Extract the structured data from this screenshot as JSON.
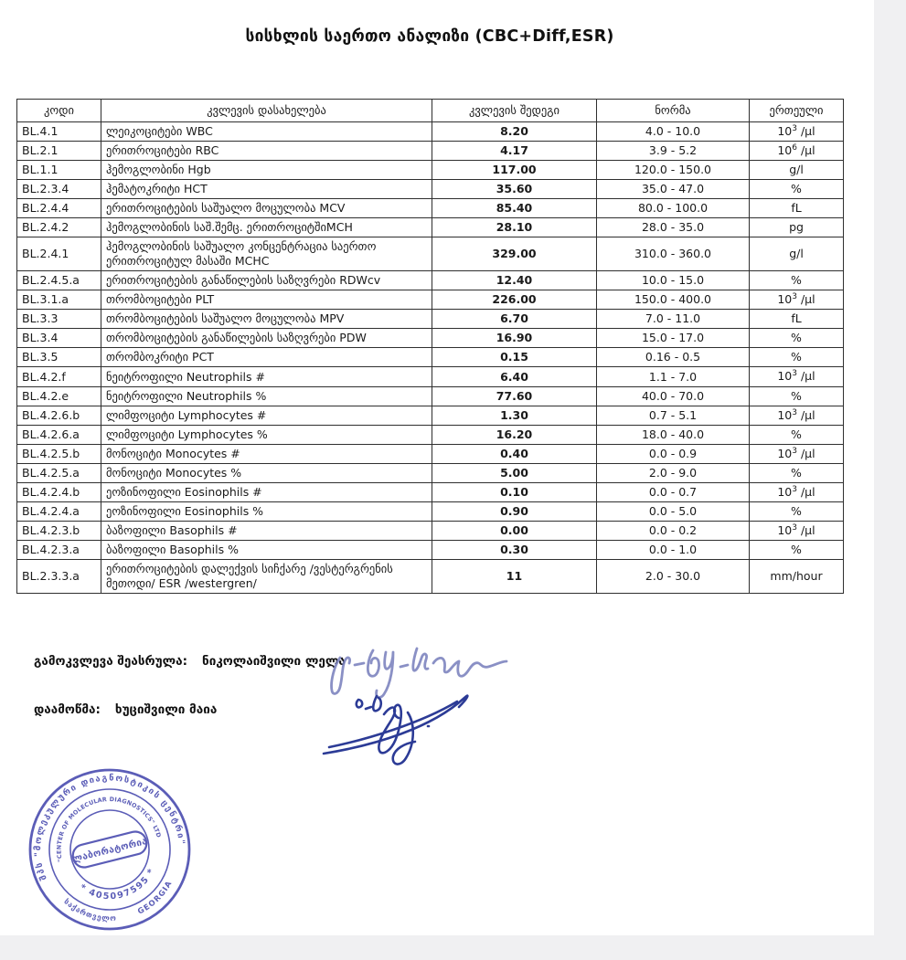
{
  "page": {
    "title": "სისხლის საერთო ანალიზი  (CBC+Diff,ESR)"
  },
  "table": {
    "headers": [
      "კოდი",
      "კვლევის დასახელება",
      "კვლევის შედეგი",
      "ნორმა",
      "ერთეული"
    ],
    "rows": [
      {
        "code": "BL.4.1",
        "name": "ლეიკოციტები WBC",
        "result": "8.20",
        "norm": "4.0 - 10.0",
        "unit": "10^3 /μl"
      },
      {
        "code": "BL.2.1",
        "name": "ერითროციტები RBC",
        "result": "4.17",
        "norm": "3.9 - 5.2",
        "unit": "10^6 /μl"
      },
      {
        "code": "BL.1.1",
        "name": "ჰემოგლობინი Hgb",
        "result": "117.00",
        "norm": "120.0 - 150.0",
        "unit": "g/l"
      },
      {
        "code": "BL.2.3.4",
        "name": "ჰემატოკრიტი HCT",
        "result": "35.60",
        "norm": "35.0 - 47.0",
        "unit": "%"
      },
      {
        "code": "BL.2.4.4",
        "name": "ერითროციტების საშუალო მოცულობა MCV",
        "result": "85.40",
        "norm": "80.0 - 100.0",
        "unit": "fL"
      },
      {
        "code": "BL.2.4.2",
        "name": "ჰემოგლობინის საშ.შემც. ერითროციტშიMCH",
        "result": "28.10",
        "norm": "28.0 - 35.0",
        "unit": "pg"
      },
      {
        "code": "BL.2.4.1",
        "name": "ჰემოგლობინის საშუალო კონცენტრაცია საერთო ერითროციტულ მასაში MCHC",
        "result": "329.00",
        "norm": "310.0 - 360.0",
        "unit": "g/l"
      },
      {
        "code": "BL.2.4.5.a",
        "name": "ერითროციტების განაწილების საზღვრები RDWcv",
        "result": "12.40",
        "norm": "10.0 - 15.0",
        "unit": "%"
      },
      {
        "code": "BL.3.1.a",
        "name": "თრომბოციტები PLT",
        "result": "226.00",
        "norm": "150.0 - 400.0",
        "unit": "10^3 /μl"
      },
      {
        "code": "BL.3.3",
        "name": "თრომბოციტების საშუალო მოცულობა MPV",
        "result": "6.70",
        "norm": "7.0 - 11.0",
        "unit": "fL"
      },
      {
        "code": "BL.3.4",
        "name": "თრომბოციტების განაწილების საზღვრები PDW",
        "result": "16.90",
        "norm": "15.0 - 17.0",
        "unit": "%"
      },
      {
        "code": "BL.3.5",
        "name": "თრომბოკრიტი PCT",
        "result": "0.15",
        "norm": "0.16 - 0.5",
        "unit": "%"
      },
      {
        "code": "BL.4.2.f",
        "name": "ნეიტროფილი Neutrophils #",
        "result": "6.40",
        "norm": "1.1 - 7.0",
        "unit": "10^3 /μl"
      },
      {
        "code": "BL.4.2.e",
        "name": "ნეიტროფილი Neutrophils %",
        "result": "77.60",
        "norm": "40.0 - 70.0",
        "unit": "%"
      },
      {
        "code": "BL.4.2.6.b",
        "name": "ლიმფოციტი Lymphocytes #",
        "result": "1.30",
        "norm": "0.7 - 5.1",
        "unit": "10^3 /μl"
      },
      {
        "code": "BL.4.2.6.a",
        "name": "ლიმფოციტი Lymphocytes %",
        "result": "16.20",
        "norm": "18.0 - 40.0",
        "unit": "%"
      },
      {
        "code": "BL.4.2.5.b",
        "name": "მონოციტი Monocytes #",
        "result": "0.40",
        "norm": "0.0 - 0.9",
        "unit": "10^3 /μl"
      },
      {
        "code": "BL.4.2.5.a",
        "name": "მონოციტი Monocytes %",
        "result": "5.00",
        "norm": "2.0 - 9.0",
        "unit": "%"
      },
      {
        "code": "BL.4.2.4.b",
        "name": "ეოზინოფილი Eosinophils #",
        "result": "0.10",
        "norm": "0.0 - 0.7",
        "unit": "10^3 /μl"
      },
      {
        "code": "BL.4.2.4.a",
        "name": "ეოზინოფილი Eosinophils %",
        "result": "0.90",
        "norm": "0.0 - 5.0",
        "unit": "%"
      },
      {
        "code": "BL.4.2.3.b",
        "name": "ბაზოფილი Basophils #",
        "result": "0.00",
        "norm": "0.0 - 0.2",
        "unit": "10^3 /μl"
      },
      {
        "code": "BL.4.2.3.a",
        "name": "ბაზოფილი Basophils %",
        "result": "0.30",
        "norm": "0.0 - 1.0",
        "unit": "%"
      },
      {
        "code": "BL.2.3.3.a",
        "name": "ერითროციტების დალექვის სიჩქარე /ვესტერგრენის მეთოდი/  ESR /westergren/",
        "result": "11",
        "norm": "2.0 - 30.0",
        "unit": "mm/hour"
      }
    ]
  },
  "footer": {
    "performed_label": "გამოკვლევა შეასრულა:",
    "performed_name": "ნიკოლაიშვილი ლელა",
    "approved_label": "დაამოწმა:",
    "approved_name": "ხუციშვილი მაია"
  },
  "stamp": {
    "ring_outer_top": "შპს \"მოლეკულური დიაგნოსტიკის ცენტრი\"",
    "ring_outer_bottom_left": "საქართველო",
    "ring_outer_bottom_right": "GEORGIA",
    "ring_inner_top": "\"CENTER OF MOLECULAR DIAGNOSTICS\" LTD",
    "ring_inner_bottom": "* 405097595 *",
    "center_label": "ლაბორატორია"
  },
  "colors": {
    "stamp_blue": "#3f41ab",
    "signature_light": "#7d84bf",
    "signature_dark": "#2c3b96",
    "table_border": "#2f2f2f",
    "background_strip": "#f0f0f2"
  }
}
